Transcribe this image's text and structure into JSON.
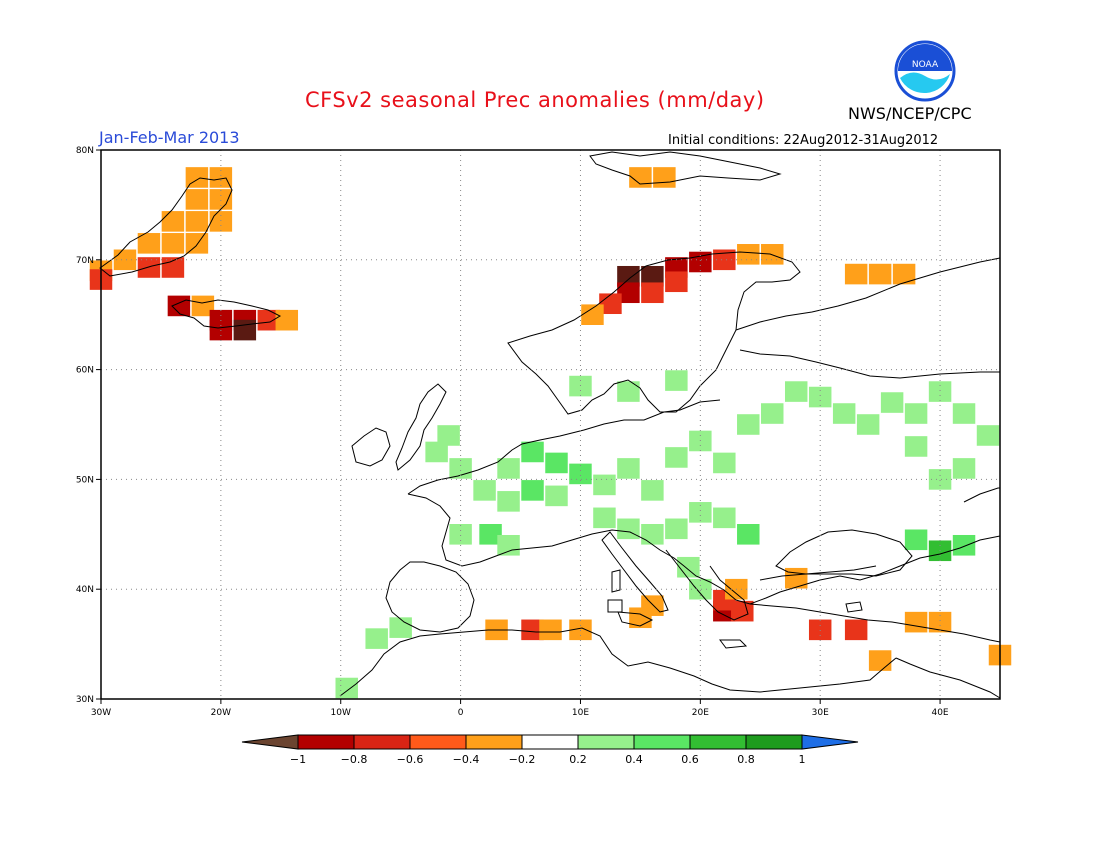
{
  "header": {
    "title": "CFSv2 seasonal Prec anomalies (mm/day)",
    "organization": "NWS/NCEP/CPC",
    "season": "Jan-Feb-Mar 2013",
    "initial_conditions": "Initial conditions: 22Aug2012-31Aug2012"
  },
  "logo": {
    "text": "NOAA",
    "color": "#1a4fd6"
  },
  "map": {
    "lon_range": [
      -30,
      45
    ],
    "lat_range": [
      30,
      80
    ],
    "lon_ticks": [
      "30W",
      "20W",
      "10W",
      "0",
      "10E",
      "20E",
      "30E",
      "40E"
    ],
    "lat_ticks": [
      "80N",
      "70N",
      "60N",
      "50N",
      "40N",
      "30N"
    ],
    "grid": "dotted",
    "cell_size_deg": 1.875,
    "anomaly_cells": [
      {
        "lon": -22,
        "lat": 77.5,
        "v": -0.3
      },
      {
        "lon": -20,
        "lat": 77.5,
        "v": -0.3
      },
      {
        "lon": -22,
        "lat": 75.5,
        "v": -0.3
      },
      {
        "lon": -20,
        "lat": 75.5,
        "v": -0.3
      },
      {
        "lon": -24,
        "lat": 73.5,
        "v": -0.3
      },
      {
        "lon": -22,
        "lat": 73.5,
        "v": -0.3
      },
      {
        "lon": -20,
        "lat": 73.5,
        "v": -0.3
      },
      {
        "lon": -26,
        "lat": 71.5,
        "v": -0.3
      },
      {
        "lon": -24,
        "lat": 71.5,
        "v": -0.3
      },
      {
        "lon": -22,
        "lat": 71.5,
        "v": -0.3
      },
      {
        "lon": -28,
        "lat": 70,
        "v": -0.3
      },
      {
        "lon": -30,
        "lat": 69,
        "v": -0.3
      },
      {
        "lon": -26,
        "lat": 69.3,
        "v": -0.5
      },
      {
        "lon": -24,
        "lat": 69.3,
        "v": -0.5
      },
      {
        "lon": -30,
        "lat": 68.2,
        "v": -0.5
      },
      {
        "lon": -23.5,
        "lat": 65.8,
        "v": -0.7
      },
      {
        "lon": -21.5,
        "lat": 65.8,
        "v": -0.3
      },
      {
        "lon": -20,
        "lat": 64.5,
        "v": -0.7
      },
      {
        "lon": -18,
        "lat": 64.5,
        "v": -0.7
      },
      {
        "lon": -16,
        "lat": 64.5,
        "v": -0.5
      },
      {
        "lon": -14.5,
        "lat": 64.5,
        "v": -0.3
      },
      {
        "lon": -20,
        "lat": 63.6,
        "v": -0.7
      },
      {
        "lon": -18,
        "lat": 63.6,
        "v": -0.9
      },
      {
        "lon": 14,
        "lat": 68.5,
        "v": -0.9
      },
      {
        "lon": 16,
        "lat": 68.5,
        "v": -0.9
      },
      {
        "lon": 18,
        "lat": 69.3,
        "v": -0.7
      },
      {
        "lon": 20,
        "lat": 69.8,
        "v": -0.7
      },
      {
        "lon": 22,
        "lat": 70,
        "v": -0.5
      },
      {
        "lon": 24,
        "lat": 70.5,
        "v": -0.3
      },
      {
        "lon": 26,
        "lat": 70.5,
        "v": -0.3
      },
      {
        "lon": 14,
        "lat": 67,
        "v": -0.7
      },
      {
        "lon": 16,
        "lat": 67,
        "v": -0.5
      },
      {
        "lon": 12.5,
        "lat": 66,
        "v": -0.5
      },
      {
        "lon": 11,
        "lat": 65,
        "v": -0.3
      },
      {
        "lon": 18,
        "lat": 68,
        "v": -0.5
      },
      {
        "lon": 33,
        "lat": 68.7,
        "v": -0.3
      },
      {
        "lon": 35,
        "lat": 68.7,
        "v": -0.3
      },
      {
        "lon": 37,
        "lat": 68.7,
        "v": -0.3
      },
      {
        "lon": 15,
        "lat": 77.5,
        "v": -0.3
      },
      {
        "lon": 17,
        "lat": 77.5,
        "v": -0.3
      },
      {
        "lon": 6,
        "lat": 52.5,
        "v": 0.5
      },
      {
        "lon": 8,
        "lat": 51.5,
        "v": 0.5
      },
      {
        "lon": 10,
        "lat": 50.5,
        "v": 0.5
      },
      {
        "lon": 4,
        "lat": 51,
        "v": 0.3
      },
      {
        "lon": 0,
        "lat": 51,
        "v": 0.3
      },
      {
        "lon": -2,
        "lat": 52.5,
        "v": 0.3
      },
      {
        "lon": -1,
        "lat": 54,
        "v": 0.3
      },
      {
        "lon": 2,
        "lat": 49,
        "v": 0.3
      },
      {
        "lon": 4,
        "lat": 48,
        "v": 0.3
      },
      {
        "lon": 6,
        "lat": 49,
        "v": 0.5
      },
      {
        "lon": 8,
        "lat": 48.5,
        "v": 0.3
      },
      {
        "lon": 12,
        "lat": 49.5,
        "v": 0.3
      },
      {
        "lon": 14,
        "lat": 51,
        "v": 0.3
      },
      {
        "lon": 16,
        "lat": 49,
        "v": 0.3
      },
      {
        "lon": 18,
        "lat": 52,
        "v": 0.3
      },
      {
        "lon": 20,
        "lat": 53.5,
        "v": 0.3
      },
      {
        "lon": 22,
        "lat": 51.5,
        "v": 0.3
      },
      {
        "lon": 24,
        "lat": 55,
        "v": 0.3
      },
      {
        "lon": 26,
        "lat": 56,
        "v": 0.3
      },
      {
        "lon": 28,
        "lat": 58,
        "v": 0.3
      },
      {
        "lon": 30,
        "lat": 57.5,
        "v": 0.3
      },
      {
        "lon": 32,
        "lat": 56,
        "v": 0.3
      },
      {
        "lon": 34,
        "lat": 55,
        "v": 0.3
      },
      {
        "lon": 36,
        "lat": 57,
        "v": 0.3
      },
      {
        "lon": 38,
        "lat": 56,
        "v": 0.3
      },
      {
        "lon": 40,
        "lat": 58,
        "v": 0.3
      },
      {
        "lon": 42,
        "lat": 56,
        "v": 0.3
      },
      {
        "lon": 44,
        "lat": 54,
        "v": 0.3
      },
      {
        "lon": 42,
        "lat": 51,
        "v": 0.3
      },
      {
        "lon": 40,
        "lat": 50,
        "v": 0.3
      },
      {
        "lon": 38,
        "lat": 53,
        "v": 0.3
      },
      {
        "lon": 12,
        "lat": 46.5,
        "v": 0.3
      },
      {
        "lon": 14,
        "lat": 45.5,
        "v": 0.3
      },
      {
        "lon": 16,
        "lat": 45,
        "v": 0.3
      },
      {
        "lon": 18,
        "lat": 45.5,
        "v": 0.3
      },
      {
        "lon": 20,
        "lat": 47,
        "v": 0.3
      },
      {
        "lon": 22,
        "lat": 46.5,
        "v": 0.3
      },
      {
        "lon": 24,
        "lat": 45,
        "v": 0.5
      },
      {
        "lon": 2.5,
        "lat": 45,
        "v": 0.5
      },
      {
        "lon": 0,
        "lat": 45,
        "v": 0.3
      },
      {
        "lon": 4,
        "lat": 44,
        "v": 0.3
      },
      {
        "lon": 40,
        "lat": 43.5,
        "v": 0.7
      },
      {
        "lon": 38,
        "lat": 44.5,
        "v": 0.5
      },
      {
        "lon": 42,
        "lat": 44,
        "v": 0.5
      },
      {
        "lon": 10,
        "lat": 58.5,
        "v": 0.3
      },
      {
        "lon": 14,
        "lat": 58,
        "v": 0.3
      },
      {
        "lon": 18,
        "lat": 59,
        "v": 0.3
      },
      {
        "lon": -7,
        "lat": 35.5,
        "v": 0.3
      },
      {
        "lon": -5,
        "lat": 36.5,
        "v": 0.3
      },
      {
        "lon": -9.5,
        "lat": 31,
        "v": 0.3
      },
      {
        "lon": 19,
        "lat": 42,
        "v": 0.3
      },
      {
        "lon": 20,
        "lat": 40,
        "v": 0.3
      },
      {
        "lon": 3,
        "lat": 36.3,
        "v": -0.3
      },
      {
        "lon": 6,
        "lat": 36.3,
        "v": -0.5
      },
      {
        "lon": 7.5,
        "lat": 36.3,
        "v": -0.3
      },
      {
        "lon": 10,
        "lat": 36.3,
        "v": -0.3
      },
      {
        "lon": 15,
        "lat": 37.4,
        "v": -0.3
      },
      {
        "lon": 16,
        "lat": 38.5,
        "v": -0.3
      },
      {
        "lon": 22,
        "lat": 38,
        "v": -0.7
      },
      {
        "lon": 23.5,
        "lat": 38,
        "v": -0.5
      },
      {
        "lon": 22,
        "lat": 39,
        "v": -0.5
      },
      {
        "lon": 23,
        "lat": 40,
        "v": -0.3
      },
      {
        "lon": 30,
        "lat": 36.3,
        "v": -0.5
      },
      {
        "lon": 33,
        "lat": 36.3,
        "v": -0.5
      },
      {
        "lon": 38,
        "lat": 37,
        "v": -0.3
      },
      {
        "lon": 40,
        "lat": 37,
        "v": -0.3
      },
      {
        "lon": 35,
        "lat": 33.5,
        "v": -0.3
      },
      {
        "lon": 28,
        "lat": 41,
        "v": -0.3
      },
      {
        "lon": 45,
        "lat": 34,
        "v": -0.3
      }
    ]
  },
  "legend": {
    "tick_labels": [
      "-1",
      "-0.8",
      "-0.6",
      "-0.4",
      "-0.2",
      "0.2",
      "0.4",
      "0.6",
      "0.8",
      "1"
    ],
    "colors": [
      "#6b4430",
      "#b30000",
      "#d92415",
      "#ff5a1a",
      "#ffa01a",
      "#ffffff",
      "#96f08c",
      "#5ae664",
      "#32be32",
      "#1e9b1e",
      "#1e6ee6"
    ]
  }
}
